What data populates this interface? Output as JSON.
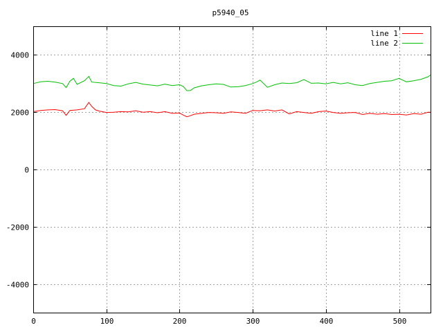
{
  "chart_data": {
    "type": "line",
    "title": "p5940_05",
    "xlabel": "",
    "ylabel": "",
    "xlim": [
      0,
      543
    ],
    "ylim": [
      -5000,
      5000
    ],
    "x_ticks": [
      0,
      100,
      200,
      300,
      400,
      500
    ],
    "y_ticks": [
      -4000,
      -2000,
      0,
      2000,
      4000
    ],
    "x_tick_labels": [
      "0",
      "100",
      "200",
      "300",
      "400",
      "500"
    ],
    "y_tick_labels": [
      "-4000",
      "-2000",
      "0",
      "2000",
      "4000"
    ],
    "grid": true,
    "legend_position": "top-right",
    "series": [
      {
        "name": "line 1",
        "color": "#ff0000",
        "x": [
          0,
          10,
          20,
          30,
          40,
          45,
          50,
          60,
          70,
          76,
          80,
          85,
          90,
          100,
          110,
          120,
          130,
          140,
          150,
          160,
          170,
          180,
          190,
          200,
          205,
          210,
          215,
          220,
          230,
          240,
          250,
          260,
          270,
          280,
          290,
          300,
          310,
          320,
          330,
          340,
          350,
          360,
          370,
          380,
          390,
          400,
          410,
          420,
          430,
          440,
          450,
          460,
          470,
          480,
          490,
          500,
          510,
          520,
          530,
          540,
          543
        ],
        "values": [
          2020,
          2060,
          2080,
          2090,
          2050,
          1890,
          2060,
          2080,
          2120,
          2340,
          2200,
          2080,
          2040,
          1990,
          2000,
          2020,
          2010,
          2050,
          2000,
          2020,
          1980,
          2020,
          1960,
          1970,
          1900,
          1840,
          1880,
          1930,
          1960,
          1990,
          1980,
          1960,
          2010,
          1990,
          1960,
          2060,
          2050,
          2080,
          2040,
          2080,
          1940,
          2020,
          1990,
          1960,
          2020,
          2040,
          1990,
          1960,
          1980,
          1990,
          1920,
          1960,
          1930,
          1950,
          1920,
          1930,
          1900,
          1950,
          1930,
          2000,
          2000
        ]
      },
      {
        "name": "line 2",
        "color": "#00c000",
        "x": [
          0,
          10,
          20,
          30,
          40,
          45,
          50,
          55,
          60,
          70,
          76,
          80,
          90,
          100,
          110,
          120,
          130,
          140,
          150,
          160,
          170,
          180,
          190,
          200,
          205,
          210,
          215,
          220,
          230,
          240,
          250,
          260,
          270,
          280,
          290,
          300,
          305,
          310,
          320,
          330,
          340,
          350,
          360,
          370,
          380,
          390,
          400,
          410,
          420,
          430,
          440,
          450,
          460,
          470,
          480,
          490,
          500,
          510,
          520,
          530,
          540,
          543
        ],
        "values": [
          3000,
          3060,
          3080,
          3050,
          3000,
          2860,
          3080,
          3180,
          2970,
          3100,
          3250,
          3050,
          3030,
          3000,
          2930,
          2910,
          2990,
          3040,
          2980,
          2950,
          2920,
          2980,
          2930,
          2960,
          2900,
          2750,
          2760,
          2850,
          2920,
          2960,
          2990,
          2970,
          2880,
          2890,
          2930,
          3000,
          3050,
          3120,
          2870,
          2960,
          3020,
          3000,
          3030,
          3140,
          3010,
          3020,
          2990,
          3040,
          2990,
          3030,
          2960,
          2930,
          3000,
          3040,
          3080,
          3100,
          3180,
          3060,
          3100,
          3150,
          3240,
          3300
        ]
      }
    ]
  }
}
